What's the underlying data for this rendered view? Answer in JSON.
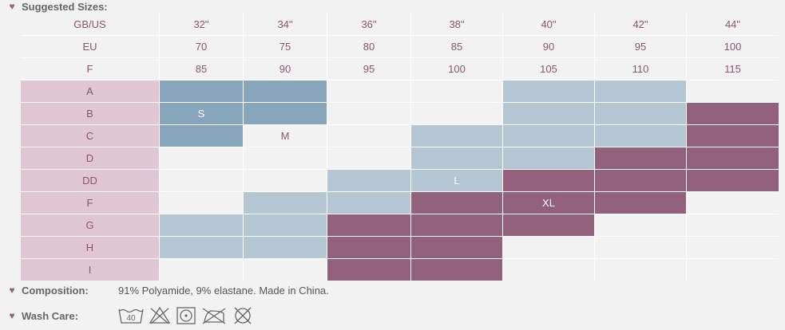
{
  "headings": {
    "suggested_sizes": "Suggested Sizes:"
  },
  "colors": {
    "label_pink": "#e0c6d3",
    "small_blue": "#87a5bb",
    "medium_blue": "#b4c5d3",
    "large_plum": "#94617d",
    "empty": "#f2f2f2",
    "text": "#8a5470"
  },
  "table": {
    "header_rows": [
      {
        "label": "GB/US",
        "values": [
          "32\"",
          "34\"",
          "36\"",
          "38\"",
          "40\"",
          "42\"",
          "44\""
        ]
      },
      {
        "label": "EU",
        "values": [
          "70",
          "75",
          "80",
          "85",
          "90",
          "95",
          "100"
        ]
      },
      {
        "label": "F",
        "values": [
          "85",
          "90",
          "95",
          "100",
          "105",
          "110",
          "115"
        ]
      }
    ],
    "cup_rows": [
      {
        "cup": "A",
        "cells": [
          "S",
          "S",
          "",
          "",
          "M",
          "M",
          ""
        ]
      },
      {
        "cup": "B",
        "cells": [
          "S",
          "S",
          "",
          "",
          "M",
          "M",
          "L"
        ]
      },
      {
        "cup": "C",
        "cells": [
          "S",
          "",
          "",
          "M",
          "M",
          "M",
          "L"
        ]
      },
      {
        "cup": "D",
        "cells": [
          "",
          "",
          "",
          "M",
          "M",
          "L",
          "L"
        ]
      },
      {
        "cup": "DD",
        "cells": [
          "",
          "",
          "M",
          "M",
          "L",
          "L",
          "L"
        ]
      },
      {
        "cup": "F",
        "cells": [
          "",
          "M",
          "M",
          "L",
          "L",
          "L",
          ""
        ]
      },
      {
        "cup": "G",
        "cells": [
          "M",
          "M",
          "L",
          "L",
          "L",
          "",
          ""
        ]
      },
      {
        "cup": "H",
        "cells": [
          "M",
          "M",
          "L",
          "L",
          "",
          "",
          ""
        ]
      },
      {
        "cup": "I",
        "cells": [
          "",
          "",
          "L",
          "L",
          "",
          "",
          ""
        ]
      }
    ],
    "size_labels": [
      {
        "text": "S",
        "row": 1,
        "col": 0
      },
      {
        "text": "M",
        "row": 2,
        "col": 1
      },
      {
        "text": "L",
        "row": 4,
        "col": 3
      },
      {
        "text": "XL",
        "row": 5,
        "col": 4
      }
    ]
  },
  "composition": {
    "label": "Composition:",
    "value": "91% Polyamide, 9% elastane. Made in China."
  },
  "wash_care": {
    "label": "Wash Care:",
    "wash_temp": "40",
    "icons": [
      "wash-40-icon",
      "no-bleach-icon",
      "tumble-dry-low-icon",
      "no-iron-icon",
      "no-dry-clean-icon"
    ]
  }
}
